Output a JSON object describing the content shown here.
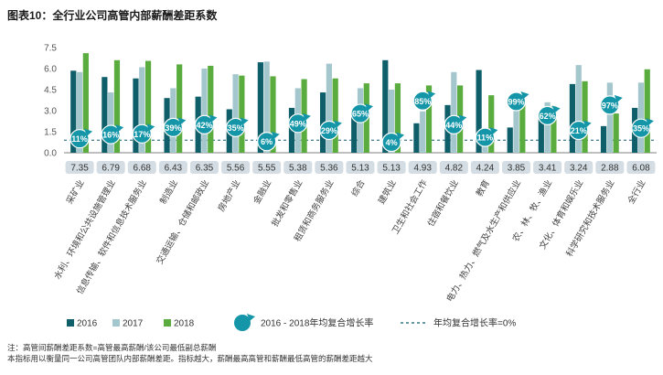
{
  "chart_data": {
    "type": "bar",
    "title": "图表10：全行业公司高管内部薪酬差距系数",
    "ylim": [
      0,
      7.5
    ],
    "yticks": [
      "0.0",
      "1.5",
      "3.0",
      "4.5",
      "6.0",
      "7.5"
    ],
    "grid": false,
    "categories": [
      "采矿业",
      "水利、环境和公共设施管理业",
      "信息传输、软件和信息技术服务业",
      "制造业",
      "交通运输、仓储和邮政业",
      "房地产业",
      "金融业",
      "批发和零售业",
      "租赁和商务服务业",
      "综合",
      "建筑业",
      "卫生和社会工作",
      "住宿和餐饮业",
      "教育",
      "电力、热力、燃气及水生产和供应业",
      "农、林、牧、渔业",
      "文化、体育和娱乐业",
      "科学研究和技术服务业",
      "全行业"
    ],
    "series": [
      {
        "name": "2016",
        "color": "#0f5f6b",
        "values": [
          5.85,
          5.4,
          5.3,
          3.9,
          4.0,
          3.1,
          6.45,
          3.2,
          4.3,
          2.6,
          6.6,
          2.1,
          3.4,
          5.9,
          1.8,
          2.8,
          4.9,
          1.9,
          3.2
        ]
      },
      {
        "name": "2017",
        "color": "#a4c6cd",
        "values": [
          5.75,
          4.3,
          6.1,
          4.6,
          6.0,
          5.6,
          6.5,
          4.6,
          6.35,
          4.6,
          4.5,
          2.95,
          5.75,
          1.5,
          3.4,
          3.6,
          6.25,
          5.0,
          5.0
        ]
      },
      {
        "name": "2018",
        "color": "#5aac3f",
        "values": [
          7.1,
          6.6,
          6.55,
          6.3,
          6.2,
          5.5,
          5.45,
          5.25,
          5.3,
          4.95,
          4.95,
          4.8,
          4.8,
          4.1,
          3.75,
          3.3,
          5.1,
          2.8,
          5.95
        ]
      }
    ],
    "gap_labels": [
      "7.35",
      "6.79",
      "6.68",
      "6.43",
      "6.35",
      "5.56",
      "5.55",
      "5.38",
      "5.36",
      "5.13",
      "5.13",
      "4.93",
      "4.82",
      "4.24",
      "3.85",
      "3.41",
      "3.24",
      "2.88",
      "6.08"
    ],
    "cagr": {
      "name": "2016 - 2018年均复合增长率",
      "color": "#1496a8",
      "labels": [
        "11%",
        "16%",
        "17%",
        "39%",
        "42%",
        "35%",
        "6%",
        "49%",
        "29%",
        "65%",
        "4%",
        "85%",
        "44%",
        "11%",
        "99%",
        "62%",
        "21%",
        "97%",
        "35%"
      ],
      "positions": [
        1.0,
        1.3,
        1.35,
        1.8,
        2.0,
        1.8,
        0.8,
        2.1,
        1.6,
        2.8,
        0.75,
        3.7,
        2.0,
        1.1,
        3.65,
        2.65,
        1.6,
        3.4,
        1.75
      ]
    },
    "zero_line": {
      "name": "年均复合增长率=0%",
      "value": 0.9
    },
    "legend": [
      "2016",
      "2017",
      "2018",
      "2016 - 2018年均复合增长率",
      "年均复合增长率=0%"
    ],
    "notes": [
      "注：高管间薪酬差距系数=高管最高薪酬/该公司最低副总薪酬",
      "本指标用以衡量同一公司高管团队内部薪酬差距。指标越大，薪酬最高高管和薪酬最低高管的薪酬差距越大"
    ]
  }
}
